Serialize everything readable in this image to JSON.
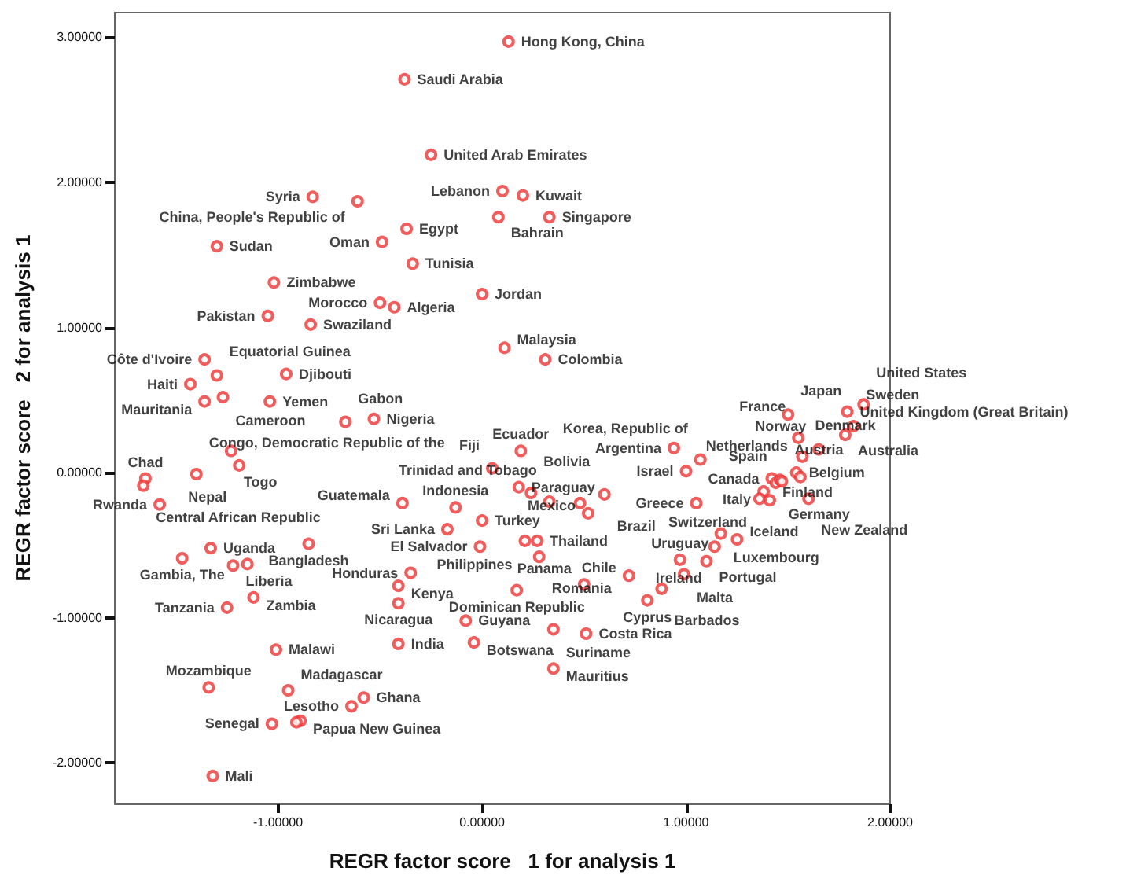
{
  "chart_data": {
    "type": "scatter",
    "xlabel": "REGR factor score   1 for analysis 1",
    "ylabel": "REGR factor score   2 for analysis 1",
    "xlim": [
      -1.8,
      2.0
    ],
    "ylim": [
      -2.28,
      3.17
    ],
    "xticks": [
      {
        "value": -1,
        "label": "-1.00000"
      },
      {
        "value": 0,
        "label": "0.00000"
      },
      {
        "value": 1,
        "label": "1.00000"
      },
      {
        "value": 2,
        "label": "2.00000"
      }
    ],
    "yticks": [
      {
        "value": -2,
        "label": "-2.00000"
      },
      {
        "value": -1,
        "label": "-1.00000"
      },
      {
        "value": 0,
        "label": "0.00000"
      },
      {
        "value": 1,
        "label": "1.00000"
      },
      {
        "value": 2,
        "label": "2.00000"
      },
      {
        "value": 3,
        "label": "3.00000"
      }
    ],
    "marker": "circle",
    "color": "#ee3333",
    "x": [
      0.13,
      -0.38,
      -0.25,
      -0.83,
      0.1,
      0.2,
      -0.61,
      0.08,
      0.33,
      -0.37,
      -0.49,
      -0.34,
      -1.3,
      -1.02,
      0.0,
      -0.5,
      -0.43,
      -1.05,
      -0.84,
      0.11,
      0.31,
      -1.36,
      -1.3,
      -0.96,
      -1.43,
      -1.27,
      -1.36,
      -1.04,
      -0.67,
      -0.53,
      -1.23,
      -1.19,
      -1.4,
      -1.65,
      -1.66,
      -1.58,
      -1.33,
      -1.47,
      -1.22,
      -1.15,
      -0.85,
      -1.12,
      -1.25,
      -1.01,
      -1.34,
      -0.95,
      -0.58,
      -0.64,
      -0.89,
      -1.03,
      -0.91,
      -1.32,
      -0.39,
      0.19,
      0.05,
      -0.13,
      -0.17,
      0.0,
      -0.01,
      -0.35,
      -0.41,
      -0.41,
      -0.08,
      -0.41,
      -0.04,
      0.17,
      0.18,
      0.24,
      0.33,
      0.6,
      0.48,
      0.52,
      1.05,
      0.21,
      0.27,
      0.28,
      0.35,
      0.51,
      0.35,
      0.94,
      1.07,
      1.0,
      1.5,
      1.87,
      1.79,
      1.82,
      1.78,
      1.55,
      1.65,
      1.17,
      1.25,
      1.14,
      0.97,
      1.1,
      0.72,
      0.99,
      0.5,
      0.88,
      0.81,
      1.42,
      1.44,
      1.46,
      1.54,
      1.38,
      1.36,
      1.41,
      1.57,
      1.56,
      1.47,
      1.6
    ],
    "values": [
      2.97,
      2.71,
      2.19,
      1.9,
      1.94,
      1.91,
      1.87,
      1.76,
      1.76,
      1.68,
      1.59,
      1.44,
      1.56,
      1.31,
      1.23,
      1.17,
      1.14,
      1.08,
      1.02,
      0.86,
      0.78,
      0.78,
      0.67,
      0.68,
      0.61,
      0.52,
      0.49,
      0.49,
      0.35,
      0.37,
      0.15,
      0.05,
      -0.01,
      -0.04,
      -0.09,
      -0.22,
      -0.52,
      -0.59,
      -0.64,
      -0.63,
      -0.49,
      -0.86,
      -0.93,
      -1.22,
      -1.48,
      -1.5,
      -1.55,
      -1.61,
      -1.71,
      -1.73,
      -1.72,
      -2.09,
      -0.21,
      0.15,
      0.03,
      -0.24,
      -0.39,
      -0.33,
      -0.51,
      -0.69,
      -0.78,
      -0.9,
      -1.02,
      -1.18,
      -1.17,
      -0.81,
      -0.1,
      -0.14,
      -0.2,
      -0.15,
      -0.21,
      -0.28,
      -0.21,
      -0.47,
      -0.47,
      -0.58,
      -1.08,
      -1.11,
      -1.35,
      0.17,
      0.09,
      0.01,
      0.4,
      0.47,
      0.42,
      0.32,
      0.26,
      0.24,
      0.16,
      -0.42,
      -0.46,
      -0.51,
      -0.6,
      -0.61,
      -0.71,
      -0.7,
      -0.77,
      -0.8,
      -0.88,
      -0.04,
      -0.07,
      -0.05,
      0.0,
      -0.13,
      -0.18,
      -0.19,
      0.11,
      -0.03,
      -0.06,
      -0.18
    ],
    "value_labels": [
      "Hong Kong, China",
      "Saudi Arabia",
      "United Arab Emirates",
      "Syria",
      "Lebanon",
      "Kuwait",
      "China, People's Republic of",
      "Bahrain",
      "Singapore",
      "Egypt",
      "Oman",
      "Tunisia",
      "Sudan",
      "Zimbabwe",
      "Jordan",
      "Morocco",
      "Algeria",
      "Pakistan",
      "Swaziland",
      "Malaysia",
      "Colombia",
      "Côte d'Ivoire",
      "Equatorial Guinea",
      "Djibouti",
      "Haiti",
      "Cameroon",
      "Mauritania",
      "Yemen",
      "Gabon",
      "Nigeria",
      "Togo",
      "Nepal",
      "Congo, Democratic Republic of the",
      "Chad",
      "Central African Republic",
      "Rwanda",
      "Uganda",
      "Gambia, The",
      "Liberia",
      null,
      "Bangladesh",
      "Zambia",
      "Tanzania",
      "Malawi",
      "Mozambique",
      "Madagascar",
      "Ghana",
      "Lesotho",
      "Papua New Guinea",
      "Senegal",
      null,
      "Mali",
      "Guatemala",
      "Ecuador",
      "Fiji",
      "Indonesia",
      "Sri Lanka",
      "Turkey",
      "El Salvador",
      "Honduras",
      "Kenya",
      "Nicaragua",
      "Guyana",
      "India",
      "Botswana",
      "Dominican Republic",
      "Paraguay",
      "Bolivia",
      "Trinidad and Tobago",
      "Brazil",
      null,
      "Mexico",
      "Greece",
      "Philippines",
      "Thailand",
      "Romania",
      "Suriname",
      "Costa Rica",
      "Mauritius",
      "Argentina",
      "Korea, Republic of",
      "Israel",
      "Japan",
      "United States",
      "United Kingdom (Great Britain)",
      "Sweden",
      "Australia",
      "France",
      "Norway",
      "Luxembourg",
      "Iceland",
      "Ireland",
      "Uruguay",
      "Portugal",
      "Chile",
      "Malta",
      "Panama",
      "Barbados",
      "Cyprus",
      "Canada",
      "Germany",
      "Spain",
      "Belgium",
      "Italy",
      "Switzerland",
      "Finland",
      "Denmark",
      "Netherlands",
      "Austria",
      "New Zealand"
    ]
  }
}
